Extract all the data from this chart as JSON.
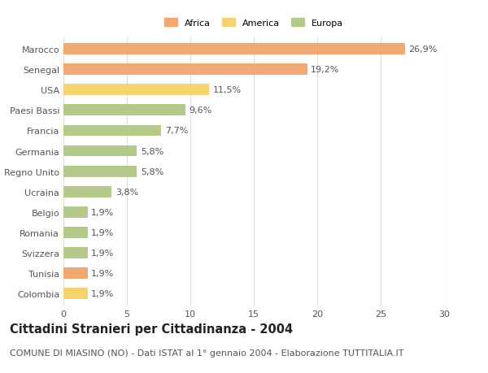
{
  "categories": [
    "Marocco",
    "Senegal",
    "USA",
    "Paesi Bassi",
    "Francia",
    "Germania",
    "Regno Unito",
    "Ucraina",
    "Belgio",
    "Romania",
    "Svizzera",
    "Tunisia",
    "Colombia"
  ],
  "values": [
    26.9,
    19.2,
    11.5,
    9.6,
    7.7,
    5.8,
    5.8,
    3.8,
    1.9,
    1.9,
    1.9,
    1.9,
    1.9
  ],
  "labels": [
    "26,9%",
    "19,2%",
    "11,5%",
    "9,6%",
    "7,7%",
    "5,8%",
    "5,8%",
    "3,8%",
    "1,9%",
    "1,9%",
    "1,9%",
    "1,9%",
    "1,9%"
  ],
  "colors": [
    "#F0A875",
    "#F0A875",
    "#F5D470",
    "#B5C98A",
    "#B5C98A",
    "#B5C98A",
    "#B5C98A",
    "#B5C98A",
    "#B5C98A",
    "#B5C98A",
    "#B5C98A",
    "#F0A875",
    "#F5D470"
  ],
  "continent": [
    "Africa",
    "Africa",
    "America",
    "Europa",
    "Europa",
    "Europa",
    "Europa",
    "Europa",
    "Europa",
    "Europa",
    "Europa",
    "Africa",
    "America"
  ],
  "legend_labels": [
    "Africa",
    "America",
    "Europa"
  ],
  "legend_colors": [
    "#F0A875",
    "#F5D470",
    "#B5C98A"
  ],
  "title": "Cittadini Stranieri per Cittadinanza - 2004",
  "subtitle": "COMUNE DI MIASINO (NO) - Dati ISTAT al 1° gennaio 2004 - Elaborazione TUTTITALIA.IT",
  "xlim": [
    0,
    30
  ],
  "xticks": [
    0,
    5,
    10,
    15,
    20,
    25,
    30
  ],
  "bg_color": "#ffffff",
  "grid_color": "#dddddd",
  "bar_height": 0.55,
  "label_fontsize": 8.0,
  "title_fontsize": 10.5,
  "subtitle_fontsize": 8.0
}
